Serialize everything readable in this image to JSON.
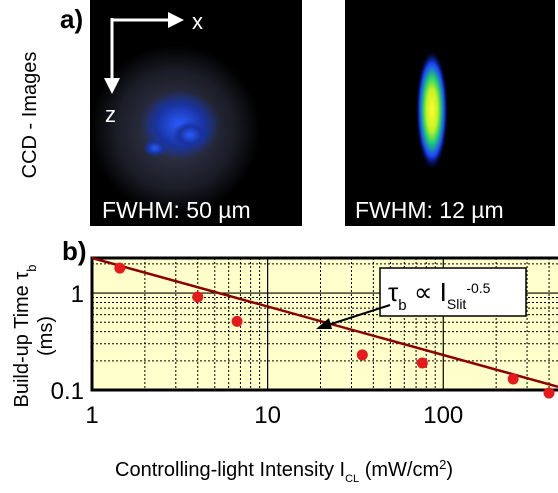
{
  "panel_a": {
    "label": "a)",
    "side_label": "CCD - Images",
    "axis_x": "x",
    "axis_z": "z",
    "images": [
      {
        "caption": "FWHM: 50 µm"
      },
      {
        "caption": "FWHM: 12 µm"
      }
    ]
  },
  "chart_data": {
    "type": "scatter",
    "panel_label": "b)",
    "x_label": [
      "Controlling-light Intensity I",
      "CL",
      " (mW/cm",
      "2",
      ")"
    ],
    "y_label": [
      "Build-up Time τ",
      "b",
      "(ms)"
    ],
    "annotation": [
      "τ",
      "b",
      " ∝ I",
      "Slit",
      "-0.5"
    ],
    "x": [
      1.44,
      4.0,
      6.7,
      34.6,
      76,
      250,
      400
    ],
    "series": [
      {
        "color": "#e8191b",
        "values": [
          1.81,
          0.91,
          0.51,
          0.23,
          0.19,
          0.13,
          0.093
        ]
      }
    ],
    "fit": {
      "color": "#8b0000",
      "x": [
        1,
        450
      ],
      "values": [
        2.3,
        0.108
      ]
    },
    "xlim": [
      1,
      450
    ],
    "ylim": [
      0.1,
      2.3
    ],
    "xticks": [
      1,
      10,
      100
    ],
    "yticks": [
      0.1,
      1
    ],
    "minor_xticks": [
      2,
      3,
      4,
      5,
      6,
      7,
      8,
      9,
      20,
      30,
      40,
      50,
      60,
      70,
      80,
      90,
      200,
      300,
      400
    ],
    "minor_yticks": [
      0.2,
      0.3,
      0.4,
      0.5,
      0.6,
      0.7,
      0.8,
      0.9,
      2
    ],
    "log_x": true,
    "log_y": true,
    "grid": true,
    "background": "#ffffcc"
  }
}
